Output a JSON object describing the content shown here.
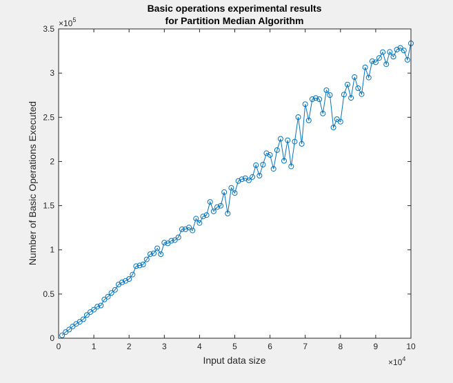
{
  "chart_data": {
    "type": "line",
    "title_lines": [
      "Basic operations experimental results",
      "for Partition Median Algorithm"
    ],
    "xlabel": "Input data size",
    "ylabel": "Number of Basic Operations Executed",
    "xlim": [
      0,
      100000
    ],
    "ylim": [
      0,
      350000
    ],
    "x_ticks": [
      0,
      10000,
      20000,
      30000,
      40000,
      50000,
      60000,
      70000,
      80000,
      90000,
      100000
    ],
    "x_tick_labels": [
      "0",
      "1",
      "2",
      "3",
      "4",
      "5",
      "6",
      "7",
      "8",
      "9",
      "10"
    ],
    "y_ticks": [
      0,
      50000,
      100000,
      150000,
      200000,
      250000,
      300000,
      350000
    ],
    "y_tick_labels": [
      "0",
      "0.5",
      "1",
      "1.5",
      "2",
      "2.5",
      "3",
      "3.5"
    ],
    "x_multiplier": {
      "base": "×10",
      "exponent": "4"
    },
    "y_multiplier": {
      "base": "×10",
      "exponent": "5"
    },
    "grid": false,
    "series": [
      {
        "color": "#0072bd",
        "marker": "circle",
        "x": [
          1000,
          2000,
          3000,
          4000,
          5000,
          6000,
          7000,
          8000,
          9000,
          10000,
          11000,
          12000,
          13000,
          14000,
          15000,
          16000,
          17000,
          18000,
          19000,
          20000,
          21000,
          22000,
          23000,
          24000,
          25000,
          26000,
          27000,
          28000,
          29000,
          30000,
          31000,
          32000,
          33000,
          34000,
          35000,
          36000,
          37000,
          38000,
          39000,
          40000,
          41000,
          42000,
          43000,
          44000,
          45000,
          46000,
          47000,
          48000,
          49000,
          50000,
          51000,
          52000,
          53000,
          54000,
          55000,
          56000,
          57000,
          58000,
          59000,
          60000,
          61000,
          62000,
          63000,
          64000,
          65000,
          66000,
          67000,
          68000,
          69000,
          70000,
          71000,
          72000,
          73000,
          74000,
          75000,
          76000,
          77000,
          78000,
          79000,
          80000,
          81000,
          82000,
          83000,
          84000,
          85000,
          86000,
          87000,
          88000,
          89000,
          90000,
          91000,
          92000,
          93000,
          94000,
          95000,
          96000,
          97000,
          98000,
          99000,
          100000
        ],
        "y": [
          3300,
          6900,
          9800,
          13300,
          16200,
          18600,
          21400,
          26300,
          29600,
          32300,
          35800,
          37000,
          43800,
          47000,
          51200,
          54700,
          60800,
          63200,
          64900,
          67000,
          72000,
          81500,
          82300,
          83500,
          89200,
          95100,
          96000,
          101700,
          95100,
          108100,
          107300,
          110300,
          111000,
          114200,
          123300,
          123300,
          125300,
          121900,
          135300,
          130400,
          137800,
          139400,
          154300,
          143600,
          148400,
          149900,
          165300,
          141100,
          170200,
          164300,
          177900,
          179800,
          181100,
          178700,
          182500,
          195800,
          184000,
          196400,
          209400,
          207400,
          191700,
          212900,
          225700,
          200700,
          224000,
          194400,
          222500,
          250200,
          219900,
          264900,
          246500,
          270500,
          271800,
          270500,
          254300,
          280600,
          275200,
          238500,
          247900,
          245000,
          275700,
          287100,
          272000,
          295500,
          283000,
          276200,
          306600,
          295000,
          313500,
          312300,
          317200,
          323700,
          310100,
          324000,
          318600,
          326600,
          328600,
          325600,
          315000,
          333700
        ]
      }
    ]
  }
}
